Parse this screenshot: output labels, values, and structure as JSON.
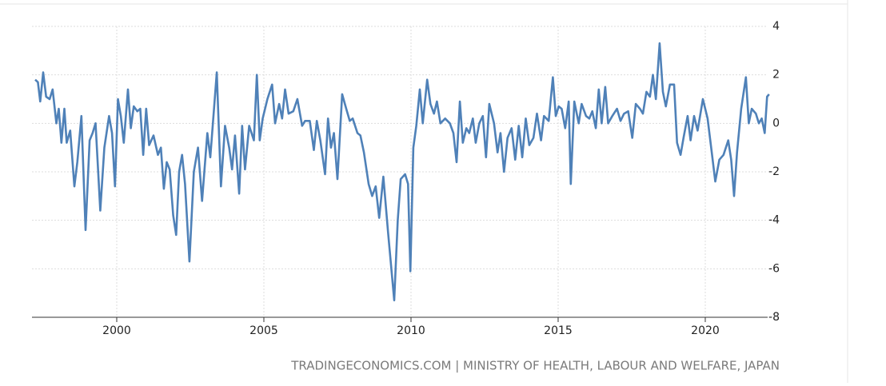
{
  "chart_data": {
    "type": "line",
    "source": "TRADINGECONOMICS.COM | MINISTRY OF HEALTH, LABOUR AND WELFARE, JAPAN",
    "x": [
      1997.23,
      1997.32,
      1997.4,
      1997.5,
      1997.6,
      1997.72,
      1997.82,
      1997.95,
      1998.03,
      1998.12,
      1998.22,
      1998.3,
      1998.42,
      1998.56,
      1998.66,
      1998.8,
      1998.94,
      1999.08,
      1999.18,
      1999.28,
      1999.44,
      1999.58,
      1999.74,
      1999.84,
      1999.94,
      2000.04,
      2000.14,
      2000.24,
      2000.38,
      2000.48,
      2000.58,
      2000.7,
      2000.8,
      2000.9,
      2001.0,
      2001.1,
      2001.25,
      2001.4,
      2001.5,
      2001.6,
      2001.7,
      2001.8,
      2001.92,
      2002.02,
      2002.12,
      2002.22,
      2002.32,
      2002.47,
      2002.62,
      2002.76,
      2002.9,
      2003.08,
      2003.18,
      2003.4,
      2003.54,
      2003.68,
      2003.82,
      2003.92,
      2004.02,
      2004.16,
      2004.26,
      2004.36,
      2004.5,
      2004.66,
      2004.76,
      2004.86,
      2004.96,
      2005.12,
      2005.28,
      2005.38,
      2005.52,
      2005.62,
      2005.72,
      2005.84,
      2006.0,
      2006.14,
      2006.3,
      2006.4,
      2006.56,
      2006.7,
      2006.8,
      2006.92,
      2007.08,
      2007.18,
      2007.28,
      2007.38,
      2007.5,
      2007.66,
      2007.8,
      2007.92,
      2008.02,
      2008.18,
      2008.28,
      2008.4,
      2008.56,
      2008.68,
      2008.8,
      2008.92,
      2009.06,
      2009.22,
      2009.43,
      2009.55,
      2009.65,
      2009.8,
      2009.9,
      2009.98,
      2010.08,
      2010.18,
      2010.3,
      2010.4,
      2010.55,
      2010.66,
      2010.78,
      2010.88,
      2011.0,
      2011.16,
      2011.32,
      2011.44,
      2011.55,
      2011.66,
      2011.76,
      2011.88,
      2011.98,
      2012.1,
      2012.2,
      2012.32,
      2012.44,
      2012.55,
      2012.66,
      2012.82,
      2012.94,
      2013.04,
      2013.16,
      2013.28,
      2013.42,
      2013.54,
      2013.66,
      2013.78,
      2013.9,
      2014.02,
      2014.16,
      2014.28,
      2014.42,
      2014.52,
      2014.68,
      2014.82,
      2014.92,
      2015.02,
      2015.12,
      2015.24,
      2015.36,
      2015.43,
      2015.55,
      2015.7,
      2015.8,
      2015.95,
      2016.06,
      2016.16,
      2016.28,
      2016.38,
      2016.48,
      2016.6,
      2016.7,
      2016.84,
      2017.0,
      2017.12,
      2017.24,
      2017.38,
      2017.52,
      2017.64,
      2017.78,
      2017.88,
      2018.0,
      2018.12,
      2018.22,
      2018.32,
      2018.45,
      2018.56,
      2018.66,
      2018.8,
      2018.94,
      2019.04,
      2019.16,
      2019.26,
      2019.4,
      2019.5,
      2019.62,
      2019.74,
      2019.92,
      2020.08,
      2020.22,
      2020.34,
      2020.48,
      2020.62,
      2020.78,
      2020.88,
      2020.98,
      2021.08,
      2021.22,
      2021.38,
      2021.48,
      2021.58,
      2021.72,
      2021.82,
      2021.92,
      2022.02,
      2022.1,
      2022.17
    ],
    "values": [
      1.8,
      1.7,
      0.9,
      2.1,
      1.1,
      1.0,
      1.4,
      0.0,
      0.6,
      -0.8,
      0.6,
      -0.8,
      -0.3,
      -2.6,
      -1.6,
      0.3,
      -4.4,
      -0.7,
      -0.4,
      0.0,
      -3.6,
      -1.0,
      0.3,
      -0.4,
      -2.6,
      1.0,
      0.3,
      -0.8,
      1.4,
      -0.2,
      0.7,
      0.5,
      0.6,
      -1.3,
      0.6,
      -0.9,
      -0.5,
      -1.3,
      -1.0,
      -2.7,
      -1.6,
      -1.9,
      -3.8,
      -4.6,
      -2.0,
      -1.3,
      -2.5,
      -5.7,
      -2.0,
      -1.0,
      -3.2,
      -0.4,
      -1.4,
      2.1,
      -2.6,
      -0.1,
      -1.0,
      -1.9,
      -0.5,
      -2.9,
      -0.1,
      -1.9,
      -0.1,
      -0.7,
      2.0,
      -0.7,
      0.2,
      1.0,
      1.6,
      0.0,
      0.8,
      0.2,
      1.4,
      0.4,
      0.5,
      1.0,
      -0.1,
      0.1,
      0.1,
      -1.1,
      0.1,
      -0.7,
      -2.1,
      0.2,
      -1.0,
      -0.4,
      -2.3,
      1.2,
      0.6,
      0.1,
      0.2,
      -0.4,
      -0.5,
      -1.2,
      -2.5,
      -3.0,
      -2.6,
      -3.9,
      -2.2,
      -4.5,
      -7.3,
      -4.0,
      -2.3,
      -2.1,
      -2.5,
      -6.1,
      -1.0,
      -0.1,
      1.4,
      0.0,
      1.8,
      0.8,
      0.4,
      0.9,
      0.0,
      0.2,
      0.0,
      -0.4,
      -1.6,
      0.9,
      -0.8,
      -0.2,
      -0.4,
      0.2,
      -0.8,
      0.0,
      0.3,
      -1.4,
      0.8,
      0.0,
      -1.2,
      -0.4,
      -2.0,
      -0.6,
      -0.2,
      -1.5,
      -0.1,
      -1.4,
      0.2,
      -0.9,
      -0.6,
      0.4,
      -0.7,
      0.3,
      0.1,
      1.9,
      0.3,
      0.7,
      0.6,
      -0.2,
      0.9,
      -2.5,
      0.9,
      0.0,
      0.8,
      0.3,
      0.2,
      0.5,
      -0.2,
      1.4,
      0.0,
      1.5,
      0.0,
      0.3,
      0.6,
      0.1,
      0.4,
      0.5,
      -0.6,
      0.8,
      0.6,
      0.4,
      1.3,
      1.1,
      2.0,
      1.0,
      3.3,
      1.3,
      0.7,
      1.6,
      1.6,
      -0.8,
      -1.3,
      -0.6,
      0.3,
      -0.7,
      0.3,
      -0.3,
      1.0,
      0.2,
      -1.2,
      -2.4,
      -1.5,
      -1.3,
      -0.7,
      -1.5,
      -3.0,
      -1.2,
      0.6,
      1.9,
      0.0,
      0.6,
      0.4,
      0.0,
      0.2,
      -0.4,
      1.1,
      1.2
    ],
    "color": "#4f81b8",
    "xlim": [
      1997.12,
      2022.12
    ],
    "xticks": [
      2000,
      2005,
      2010,
      2015,
      2020
    ],
    "ylim": [
      -8,
      4
    ],
    "yticks": [
      -8,
      -6,
      -4,
      -2,
      0,
      2,
      4
    ],
    "grid": true
  }
}
